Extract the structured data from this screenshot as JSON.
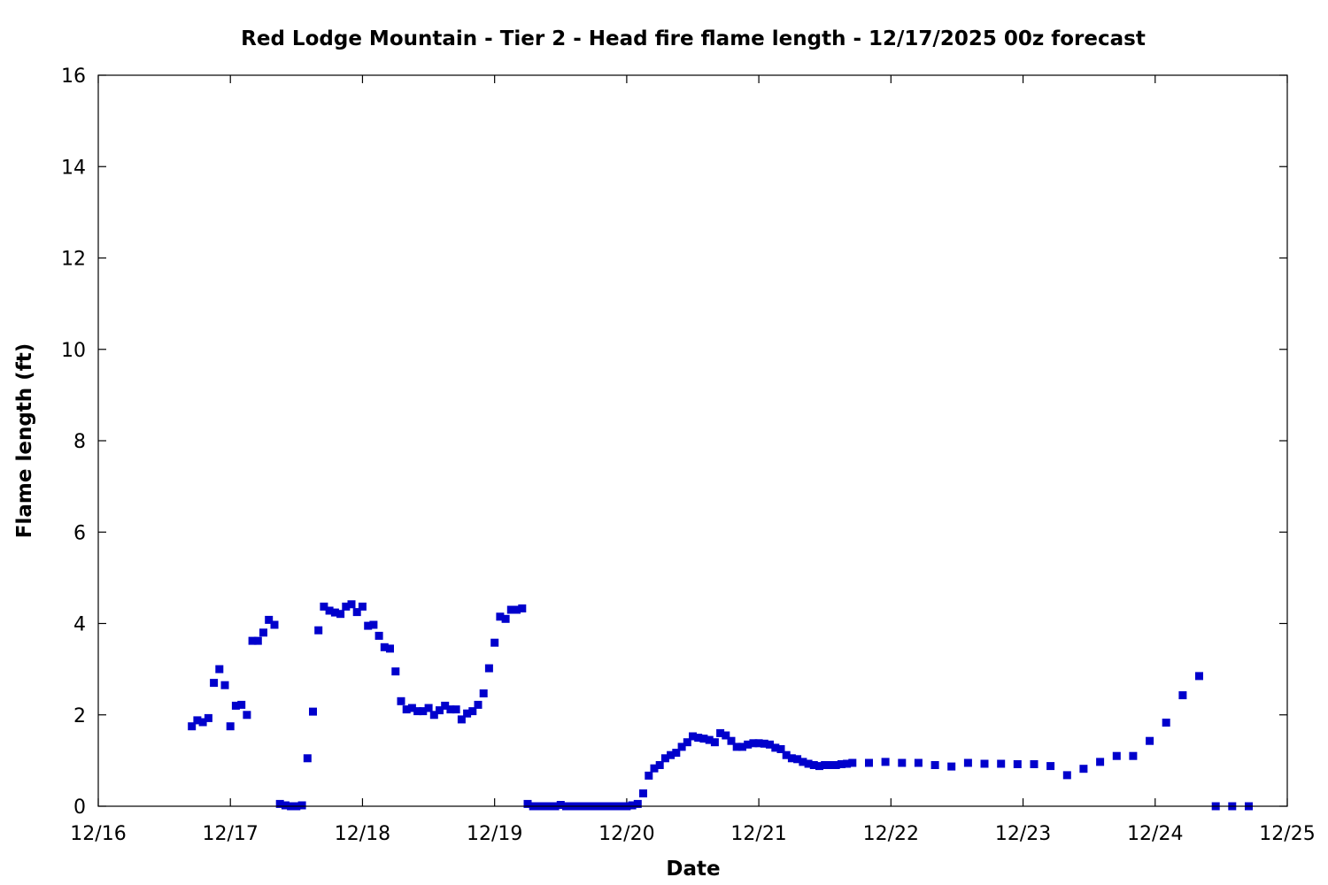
{
  "chart_data": {
    "type": "scatter",
    "title": "Red Lodge Mountain - Tier 2 - Head fire flame length - 12/17/2025 00z forecast",
    "xlabel": "Date",
    "ylabel": "Flame length (ft)",
    "xlim": [
      "12/16",
      "12/25"
    ],
    "ylim": [
      0,
      16
    ],
    "x_ticks": [
      "12/16",
      "12/17",
      "12/18",
      "12/19",
      "12/20",
      "12/21",
      "12/22",
      "12/23",
      "12/24",
      "12/25"
    ],
    "y_ticks": [
      0,
      2,
      4,
      6,
      8,
      10,
      12,
      14,
      16
    ],
    "grid": false,
    "marker_color": "#0000cc",
    "marker": "square",
    "series": [
      {
        "x": [
          "2025-12-16 17:00",
          "2025-12-16 18:00",
          "2025-12-16 19:00",
          "2025-12-16 20:00",
          "2025-12-16 21:00",
          "2025-12-16 22:00",
          "2025-12-16 23:00",
          "2025-12-17 00:00",
          "2025-12-17 01:00",
          "2025-12-17 02:00",
          "2025-12-17 03:00",
          "2025-12-17 04:00",
          "2025-12-17 05:00",
          "2025-12-17 06:00",
          "2025-12-17 07:00",
          "2025-12-17 08:00",
          "2025-12-17 09:00",
          "2025-12-17 10:00",
          "2025-12-17 11:00",
          "2025-12-17 12:00",
          "2025-12-17 13:00",
          "2025-12-17 14:00",
          "2025-12-17 15:00",
          "2025-12-17 16:00",
          "2025-12-17 17:00",
          "2025-12-17 18:00",
          "2025-12-17 19:00",
          "2025-12-17 20:00",
          "2025-12-17 21:00",
          "2025-12-17 22:00",
          "2025-12-17 23:00",
          "2025-12-18 00:00",
          "2025-12-18 01:00",
          "2025-12-18 02:00",
          "2025-12-18 03:00",
          "2025-12-18 04:00",
          "2025-12-18 05:00",
          "2025-12-18 06:00",
          "2025-12-18 07:00",
          "2025-12-18 08:00",
          "2025-12-18 09:00",
          "2025-12-18 10:00",
          "2025-12-18 11:00",
          "2025-12-18 12:00",
          "2025-12-18 13:00",
          "2025-12-18 14:00",
          "2025-12-18 15:00",
          "2025-12-18 16:00",
          "2025-12-18 17:00",
          "2025-12-18 18:00",
          "2025-12-18 19:00",
          "2025-12-18 20:00",
          "2025-12-18 21:00",
          "2025-12-18 22:00",
          "2025-12-18 23:00",
          "2025-12-19 00:00",
          "2025-12-19 01:00",
          "2025-12-19 02:00",
          "2025-12-19 03:00",
          "2025-12-19 04:00",
          "2025-12-19 05:00",
          "2025-12-19 06:00",
          "2025-12-19 07:00",
          "2025-12-19 08:00",
          "2025-12-19 09:00",
          "2025-12-19 10:00",
          "2025-12-19 11:00",
          "2025-12-19 12:00",
          "2025-12-19 13:00",
          "2025-12-19 14:00",
          "2025-12-19 15:00",
          "2025-12-19 16:00",
          "2025-12-19 17:00",
          "2025-12-19 18:00",
          "2025-12-19 19:00",
          "2025-12-19 20:00",
          "2025-12-19 21:00",
          "2025-12-19 22:00",
          "2025-12-19 23:00",
          "2025-12-20 00:00",
          "2025-12-20 01:00",
          "2025-12-20 02:00",
          "2025-12-20 03:00",
          "2025-12-20 04:00",
          "2025-12-20 05:00",
          "2025-12-20 06:00",
          "2025-12-20 07:00",
          "2025-12-20 08:00",
          "2025-12-20 09:00",
          "2025-12-20 10:00",
          "2025-12-20 11:00",
          "2025-12-20 12:00",
          "2025-12-20 13:00",
          "2025-12-20 14:00",
          "2025-12-20 15:00",
          "2025-12-20 16:00",
          "2025-12-20 17:00",
          "2025-12-20 18:00",
          "2025-12-20 19:00",
          "2025-12-20 20:00",
          "2025-12-20 21:00",
          "2025-12-20 22:00",
          "2025-12-20 23:00",
          "2025-12-21 00:00",
          "2025-12-21 01:00",
          "2025-12-21 02:00",
          "2025-12-21 03:00",
          "2025-12-21 04:00",
          "2025-12-21 05:00",
          "2025-12-21 06:00",
          "2025-12-21 07:00",
          "2025-12-21 08:00",
          "2025-12-21 09:00",
          "2025-12-21 10:00",
          "2025-12-21 11:00",
          "2025-12-21 12:00",
          "2025-12-21 13:00",
          "2025-12-21 14:00",
          "2025-12-21 15:00",
          "2025-12-21 16:00",
          "2025-12-21 17:00",
          "2025-12-21 20:00",
          "2025-12-21 23:00",
          "2025-12-22 02:00",
          "2025-12-22 05:00",
          "2025-12-22 08:00",
          "2025-12-22 11:00",
          "2025-12-22 14:00",
          "2025-12-22 17:00",
          "2025-12-22 20:00",
          "2025-12-22 23:00",
          "2025-12-23 02:00",
          "2025-12-23 05:00",
          "2025-12-23 08:00",
          "2025-12-23 11:00",
          "2025-12-23 14:00",
          "2025-12-23 17:00",
          "2025-12-23 20:00",
          "2025-12-23 23:00",
          "2025-12-24 02:00",
          "2025-12-24 05:00",
          "2025-12-24 08:00",
          "2025-12-24 11:00",
          "2025-12-24 14:00",
          "2025-12-24 17:00"
        ],
        "y": [
          1.75,
          1.88,
          1.84,
          1.93,
          2.7,
          3.0,
          2.65,
          1.75,
          2.2,
          2.22,
          2.0,
          3.62,
          3.62,
          3.8,
          4.08,
          3.97,
          0.05,
          0.02,
          0.0,
          0.0,
          0.02,
          1.05,
          2.07,
          3.85,
          4.37,
          4.28,
          4.24,
          4.21,
          4.37,
          4.42,
          4.25,
          4.37,
          3.95,
          3.97,
          3.73,
          3.48,
          3.45,
          2.95,
          2.3,
          2.12,
          2.15,
          2.08,
          2.08,
          2.15,
          2.0,
          2.1,
          2.2,
          2.12,
          2.12,
          1.9,
          2.03,
          2.08,
          2.22,
          2.47,
          3.02,
          3.58,
          4.15,
          4.1,
          4.3,
          4.3,
          4.33,
          0.05,
          0.0,
          0.0,
          0.0,
          0.0,
          0.0,
          0.03,
          0.0,
          0.0,
          0.0,
          0.0,
          0.0,
          0.0,
          0.0,
          0.0,
          0.0,
          0.0,
          0.0,
          0.0,
          0.02,
          0.05,
          0.28,
          0.67,
          0.83,
          0.9,
          1.05,
          1.12,
          1.17,
          1.3,
          1.4,
          1.53,
          1.5,
          1.48,
          1.45,
          1.4,
          1.6,
          1.55,
          1.43,
          1.3,
          1.3,
          1.35,
          1.38,
          1.38,
          1.37,
          1.35,
          1.28,
          1.25,
          1.12,
          1.05,
          1.03,
          0.97,
          0.93,
          0.9,
          0.88,
          0.9,
          0.9,
          0.9,
          0.92,
          0.93,
          0.95,
          0.95,
          0.97,
          0.95,
          0.95,
          0.9,
          0.87,
          0.95,
          0.93,
          0.93,
          0.92,
          0.92,
          0.88,
          0.68,
          0.82,
          0.97,
          1.1,
          1.1,
          1.43,
          1.83,
          2.43,
          2.85,
          0.0,
          0.0,
          0.0
        ]
      }
    ]
  }
}
